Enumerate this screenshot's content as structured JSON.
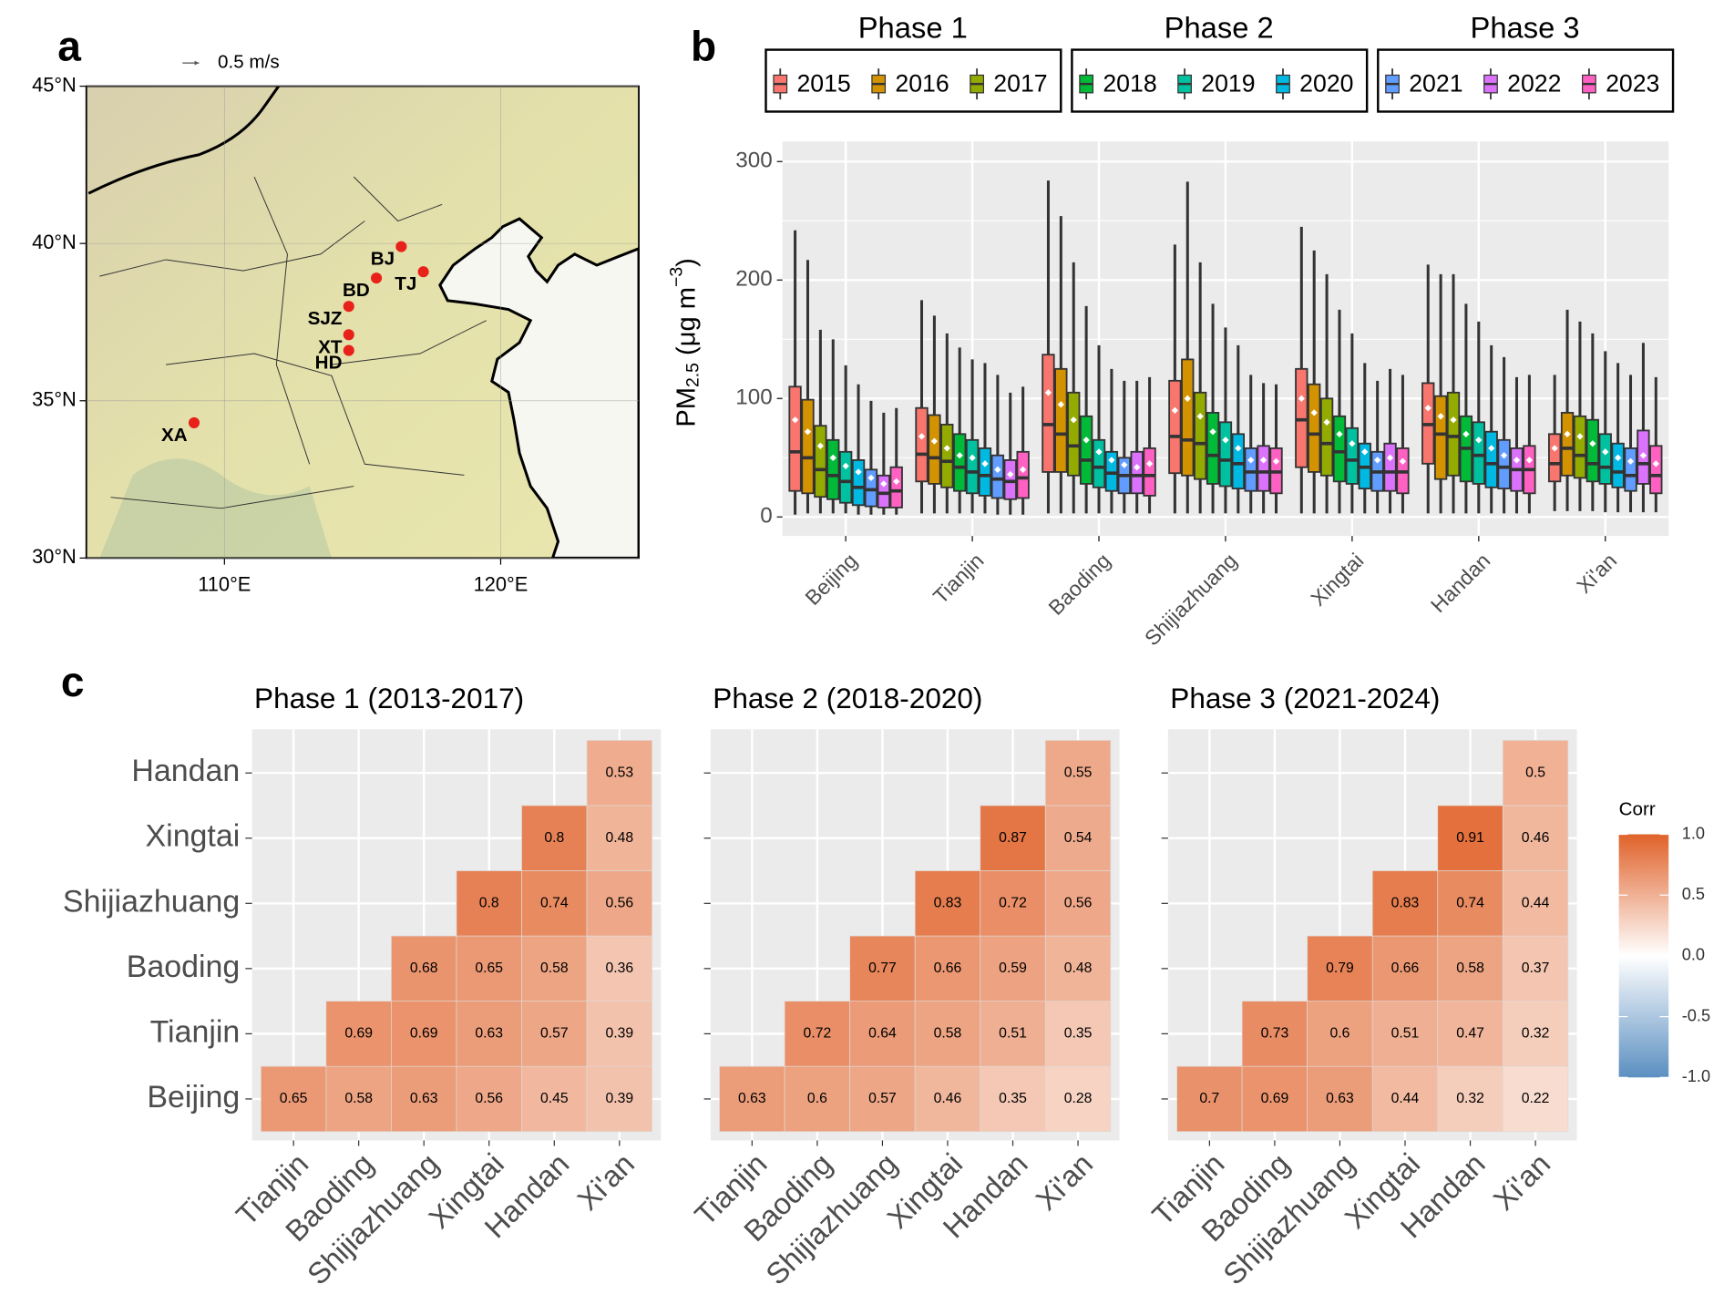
{
  "panel_labels": [
    "a",
    "b",
    "c"
  ],
  "chart_data": [
    {
      "type": "map",
      "wind_legend": "0.5 m/s",
      "xlim": [
        105,
        125
      ],
      "ylim": [
        30,
        45
      ],
      "xticks": [
        {
          "value": 110,
          "label": "110°E"
        },
        {
          "value": 120,
          "label": "120°E"
        }
      ],
      "yticks": [
        {
          "value": 30,
          "label": "30°N"
        },
        {
          "value": 35,
          "label": "35°N"
        },
        {
          "value": 40,
          "label": "40°N"
        },
        {
          "value": 45,
          "label": "45°N"
        }
      ],
      "color": "#e8221b",
      "points": [
        {
          "name": "BJ",
          "lon": 116.4,
          "lat": 39.9
        },
        {
          "name": "TJ",
          "lon": 117.2,
          "lat": 39.1
        },
        {
          "name": "BD",
          "lon": 115.5,
          "lat": 38.9
        },
        {
          "name": "SJZ",
          "lon": 114.5,
          "lat": 38.0
        },
        {
          "name": "XT",
          "lon": 114.5,
          "lat": 37.1
        },
        {
          "name": "HD",
          "lon": 114.5,
          "lat": 36.6
        },
        {
          "name": "XA",
          "lon": 108.9,
          "lat": 34.3
        }
      ]
    },
    {
      "type": "boxplot",
      "ylabel": "PM",
      "ylabel_sub": "2.5",
      "ylabel_unit": " (μg m",
      "ylabel_sup": "−3",
      "ylabel_end": ")",
      "categories": [
        "Beijing",
        "Tianjin",
        "Baoding",
        "Shijiazhuang",
        "Xingtai",
        "Handan",
        "Xi'an"
      ],
      "ylim": [
        -16,
        317
      ],
      "yticks": [
        0,
        100,
        200,
        300
      ],
      "grid": true,
      "series": [
        {
          "name": "2015",
          "group": "Phase 1",
          "color": "#F8766D",
          "low": [
            2,
            3,
            3,
            3,
            3,
            3,
            5
          ],
          "q1": [
            22,
            30,
            38,
            37,
            42,
            45,
            30
          ],
          "median": [
            55,
            53,
            78,
            68,
            82,
            78,
            45
          ],
          "q3": [
            110,
            92,
            137,
            115,
            125,
            113,
            70
          ],
          "high": [
            242,
            183,
            284,
            230,
            245,
            213,
            120
          ],
          "mean": [
            82,
            68,
            105,
            90,
            100,
            92,
            58
          ]
        },
        {
          "name": "2016",
          "group": "Phase 1",
          "color": "#D39200",
          "low": [
            3,
            3,
            3,
            3,
            3,
            3,
            5
          ],
          "q1": [
            20,
            28,
            38,
            35,
            38,
            32,
            35
          ],
          "median": [
            50,
            50,
            70,
            65,
            70,
            70,
            58
          ],
          "q3": [
            99,
            86,
            125,
            133,
            112,
            102,
            88
          ],
          "high": [
            217,
            170,
            254,
            283,
            225,
            205,
            175
          ],
          "mean": [
            72,
            64,
            95,
            100,
            88,
            85,
            70
          ]
        },
        {
          "name": "2017",
          "group": "Phase 1",
          "color": "#93AA00",
          "low": [
            3,
            3,
            3,
            3,
            3,
            3,
            5
          ],
          "q1": [
            17,
            25,
            35,
            32,
            35,
            35,
            33
          ],
          "median": [
            40,
            47,
            60,
            62,
            62,
            68,
            52
          ],
          "q3": [
            77,
            78,
            105,
            105,
            100,
            105,
            85
          ],
          "high": [
            158,
            155,
            215,
            215,
            205,
            205,
            165
          ],
          "mean": [
            60,
            58,
            82,
            85,
            80,
            82,
            68
          ]
        },
        {
          "name": "2018",
          "group": "Phase 2",
          "color": "#00BA38",
          "low": [
            3,
            3,
            3,
            3,
            3,
            3,
            5
          ],
          "q1": [
            15,
            22,
            28,
            28,
            30,
            30,
            30
          ],
          "median": [
            35,
            42,
            48,
            52,
            55,
            58,
            45
          ],
          "q3": [
            65,
            70,
            85,
            88,
            85,
            85,
            82
          ],
          "high": [
            150,
            143,
            178,
            180,
            175,
            180,
            155
          ],
          "mean": [
            50,
            52,
            65,
            72,
            70,
            70,
            62
          ]
        },
        {
          "name": "2019",
          "group": "Phase 2",
          "color": "#00C19F",
          "low": [
            3,
            3,
            3,
            3,
            3,
            3,
            4
          ],
          "q1": [
            12,
            20,
            25,
            26,
            28,
            28,
            28
          ],
          "median": [
            30,
            38,
            42,
            48,
            48,
            52,
            42
          ],
          "q3": [
            55,
            65,
            65,
            80,
            75,
            80,
            70
          ],
          "high": [
            128,
            133,
            145,
            160,
            155,
            165,
            140
          ],
          "mean": [
            43,
            50,
            55,
            65,
            62,
            65,
            55
          ]
        },
        {
          "name": "2020",
          "group": "Phase 2",
          "color": "#00B9E3",
          "low": [
            2,
            3,
            3,
            3,
            3,
            3,
            4
          ],
          "q1": [
            10,
            18,
            22,
            24,
            24,
            25,
            25
          ],
          "median": [
            25,
            35,
            37,
            45,
            42,
            45,
            38
          ],
          "q3": [
            48,
            58,
            55,
            70,
            62,
            72,
            62
          ],
          "high": [
            112,
            130,
            125,
            145,
            130,
            145,
            130
          ],
          "mean": [
            38,
            45,
            48,
            58,
            55,
            58,
            50
          ]
        },
        {
          "name": "2021",
          "group": "Phase 3",
          "color": "#619CFF",
          "low": [
            2,
            2,
            3,
            3,
            3,
            3,
            4
          ],
          "q1": [
            9,
            16,
            20,
            22,
            22,
            24,
            22
          ],
          "median": [
            23,
            32,
            35,
            38,
            38,
            42,
            35
          ],
          "q3": [
            40,
            52,
            50,
            58,
            55,
            65,
            58
          ],
          "high": [
            98,
            120,
            115,
            120,
            115,
            135,
            120
          ],
          "mean": [
            33,
            40,
            44,
            48,
            48,
            52,
            47
          ]
        },
        {
          "name": "2022",
          "group": "Phase 3",
          "color": "#DB72FB",
          "low": [
            2,
            2,
            3,
            3,
            3,
            3,
            4
          ],
          "q1": [
            8,
            15,
            20,
            22,
            22,
            22,
            28
          ],
          "median": [
            20,
            30,
            35,
            38,
            38,
            40,
            45
          ],
          "q3": [
            35,
            48,
            55,
            60,
            62,
            58,
            73
          ],
          "high": [
            88,
            105,
            115,
            113,
            125,
            118,
            147
          ],
          "mean": [
            28,
            36,
            42,
            48,
            50,
            48,
            52
          ]
        },
        {
          "name": "2023",
          "group": "Phase 3",
          "color": "#FF61C3",
          "low": [
            2,
            2,
            3,
            3,
            3,
            3,
            4
          ],
          "q1": [
            8,
            16,
            18,
            20,
            20,
            20,
            20
          ],
          "median": [
            22,
            33,
            35,
            38,
            38,
            40,
            35
          ],
          "q3": [
            42,
            55,
            58,
            58,
            58,
            60,
            60
          ],
          "high": [
            92,
            110,
            118,
            112,
            120,
            120,
            118
          ],
          "mean": [
            30,
            40,
            45,
            47,
            47,
            48,
            45
          ]
        }
      ]
    },
    {
      "type": "heatmap",
      "title": "Phase 1 (2013-2017)",
      "x_categories": [
        "Tianjin",
        "Baoding",
        "Shijiazhuang",
        "Xingtai",
        "Handan",
        "Xi'an"
      ],
      "y_categories": [
        "Beijing",
        "Tianjin",
        "Baoding",
        "Shijiazhuang",
        "Xingtai",
        "Handan"
      ],
      "colors": {
        "low": "#5b8fc1",
        "mid": "#ffffff",
        "high": "#e0622a"
      },
      "values": [
        [
          0.65,
          0.58,
          0.63,
          0.56,
          0.45,
          0.39
        ],
        [
          null,
          0.69,
          0.69,
          0.63,
          0.57,
          0.39
        ],
        [
          null,
          null,
          0.68,
          0.65,
          0.58,
          0.36
        ],
        [
          null,
          null,
          null,
          0.8,
          0.74,
          0.56
        ],
        [
          null,
          null,
          null,
          null,
          0.8,
          0.48
        ],
        [
          null,
          null,
          null,
          null,
          null,
          0.53
        ]
      ]
    },
    {
      "type": "heatmap",
      "title": "Phase 2 (2018-2020)",
      "x_categories": [
        "Tianjin",
        "Baoding",
        "Shijiazhuang",
        "Xingtai",
        "Handan",
        "Xi'an"
      ],
      "colors": {
        "low": "#5b8fc1",
        "mid": "#ffffff",
        "high": "#e0622a"
      },
      "values": [
        [
          0.63,
          0.6,
          0.57,
          0.46,
          0.35,
          0.28
        ],
        [
          null,
          0.72,
          0.64,
          0.58,
          0.51,
          0.35
        ],
        [
          null,
          null,
          0.77,
          0.66,
          0.59,
          0.48
        ],
        [
          null,
          null,
          null,
          0.83,
          0.72,
          0.56
        ],
        [
          null,
          null,
          null,
          null,
          0.87,
          0.54
        ],
        [
          null,
          null,
          null,
          null,
          null,
          0.55
        ]
      ]
    },
    {
      "type": "heatmap",
      "title": "Phase 3 (2021-2024)",
      "x_categories": [
        "Tianjin",
        "Baoding",
        "Shijiazhuang",
        "Xingtai",
        "Handan",
        "Xi'an"
      ],
      "colors": {
        "low": "#5b8fc1",
        "mid": "#ffffff",
        "high": "#e0622a"
      },
      "values": [
        [
          0.7,
          0.69,
          0.63,
          0.44,
          0.32,
          0.22
        ],
        [
          null,
          0.73,
          0.6,
          0.51,
          0.47,
          0.32
        ],
        [
          null,
          null,
          0.79,
          0.66,
          0.58,
          0.37
        ],
        [
          null,
          null,
          null,
          0.83,
          0.74,
          0.44
        ],
        [
          null,
          null,
          null,
          null,
          0.91,
          0.46
        ],
        [
          null,
          null,
          null,
          null,
          null,
          0.5
        ]
      ],
      "legend_title": "Corr",
      "clim": [
        -1,
        1
      ],
      "cticks": [
        {
          "value": 1,
          "label": "1.0"
        },
        0.5,
        {
          "value": 0,
          "label": "0.0"
        },
        -0.5,
        {
          "value": -1,
          "label": "-1.0"
        }
      ]
    }
  ]
}
